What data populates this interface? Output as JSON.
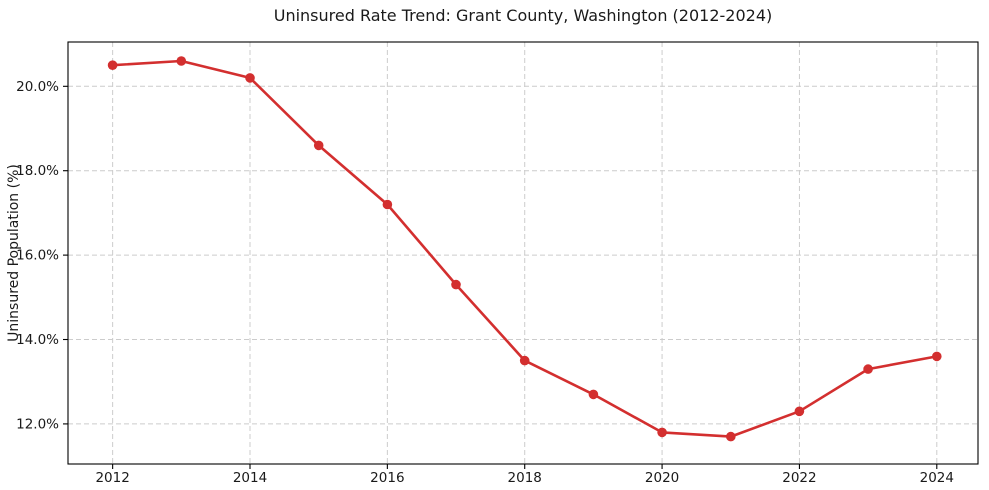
{
  "chart_data": {
    "type": "line",
    "title": "Uninsured Rate Trend: Grant County, Washington (2012-2024)",
    "xlabel": "",
    "ylabel": "Uninsured Population (%)",
    "x": [
      2012,
      2013,
      2014,
      2015,
      2016,
      2017,
      2018,
      2019,
      2020,
      2021,
      2022,
      2023,
      2024
    ],
    "series": [
      {
        "name": "Uninsured rate",
        "values": [
          20.5,
          20.6,
          20.2,
          18.6,
          17.2,
          15.3,
          13.5,
          12.7,
          11.8,
          11.7,
          12.3,
          13.3,
          13.6
        ],
        "color": "#d32f2f"
      }
    ],
    "xticks": [
      "2012",
      "2014",
      "2016",
      "2018",
      "2020",
      "2022",
      "2024"
    ],
    "xtick_values": [
      2012,
      2014,
      2016,
      2018,
      2020,
      2022,
      2024
    ],
    "ytick_labels": [
      "12.0%",
      "14.0%",
      "16.0%",
      "18.0%",
      "20.0%"
    ],
    "ytick_values": [
      12,
      14,
      16,
      18,
      20
    ],
    "xlim": [
      2011.35,
      2024.6
    ],
    "ylim": [
      11.05,
      21.05
    ],
    "grid": true,
    "grid_style": "dashed",
    "grid_color": "#cccccc",
    "spine_color": "#000000",
    "legend": "none",
    "marker": "circle"
  }
}
